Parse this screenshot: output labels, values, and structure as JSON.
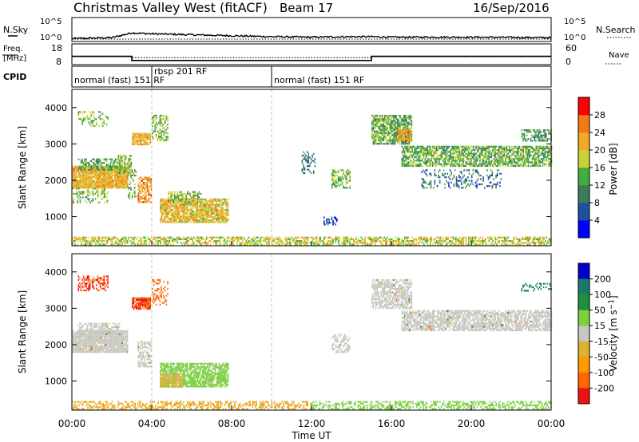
{
  "header": {
    "title": "Christmas Valley West (fitACF)",
    "beam": "Beam 17",
    "date": "16/Sep/2016"
  },
  "strips": {
    "nsky": {
      "label": "N.Sky",
      "ticks": [
        "10^5",
        "10^0"
      ]
    },
    "nsearch": {
      "label": "N.Search",
      "ticks": [
        "10^5",
        "10^0"
      ]
    },
    "freq": {
      "label_line1": "Freq.",
      "label_line2": "[MHz]",
      "ticks": [
        "18",
        "8"
      ]
    },
    "nave": {
      "label": "Nave",
      "ticks": [
        "60",
        "0"
      ]
    },
    "cpid": {
      "label": "CPID",
      "segments": [
        {
          "text": "normal (fast) 151 RF",
          "start_h": 0.0
        },
        {
          "text": "rbsp 201 RF",
          "start_h": 4.0
        },
        {
          "text": "normal (fast) 151 RF",
          "start_h": 10.0
        }
      ]
    }
  },
  "colors": {
    "power_scale": [
      "#0000ff",
      "#1f4fa0",
      "#3d7a5a",
      "#3fae3f",
      "#c8d238",
      "#f5a623",
      "#f07a16",
      "#ff0000"
    ],
    "velocity_scale": [
      "#ee1111",
      "#ff6600",
      "#ff9900",
      "#e0b030",
      "#c8c8c0",
      "#7bd13c",
      "#1d8f3d",
      "#1a7a6a",
      "#0000cc"
    ],
    "ground_scatter": "#c8c8c0"
  },
  "chart_data": [
    {
      "type": "line",
      "title": "N.Sky / N.Search",
      "x_unit": "hours UT",
      "x": [
        0,
        2,
        3,
        4,
        6,
        8,
        10,
        12,
        14,
        15,
        16,
        18,
        20,
        24
      ],
      "nsky_log10": [
        0.6,
        0.8,
        1.8,
        1.6,
        1.4,
        1.2,
        1.0,
        0.9,
        1.0,
        1.0,
        0.9,
        0.9,
        0.9,
        0.8
      ],
      "nsearch_log10": [
        0.5,
        0.5,
        0.5,
        0.5,
        0.5,
        0.5,
        0.5,
        0.5,
        0.5,
        0.5,
        0.5,
        0.5,
        0.5,
        0.5
      ]
    },
    {
      "type": "line",
      "title": "Freq / Nave",
      "x_unit": "hours UT",
      "freq_steps": [
        {
          "from_h": 0,
          "to_h": 3,
          "mhz": 12.0
        },
        {
          "from_h": 3,
          "to_h": 15,
          "mhz": 10.0
        },
        {
          "from_h": 15,
          "to_h": 24,
          "mhz": 12.0
        }
      ],
      "nave_steps": [
        {
          "from_h": 0,
          "to_h": 3,
          "value": 23
        },
        {
          "from_h": 3,
          "to_h": 15,
          "value": 20
        },
        {
          "from_h": 15,
          "to_h": 24,
          "value": 23
        }
      ]
    },
    {
      "type": "heatmap",
      "ylabel": "Slant Range [km]",
      "yticks": [
        1000,
        2000,
        3000,
        4000
      ],
      "ylim": [
        200,
        4500
      ],
      "colorbar_label": "Power [dB]",
      "colorbar_ticks": [
        4,
        8,
        12,
        16,
        20,
        24,
        28
      ],
      "clim": [
        0,
        30
      ],
      "regions": [
        {
          "t0": 0.0,
          "t1": 2.8,
          "r0": 1800,
          "r1": 2400,
          "value": 20,
          "density": 0.95
        },
        {
          "t0": 0.3,
          "t1": 2.4,
          "r0": 2300,
          "r1": 2600,
          "value": 12,
          "density": 0.6
        },
        {
          "t0": 2.3,
          "t1": 3.0,
          "r0": 2200,
          "r1": 2700,
          "value": 14,
          "density": 0.7
        },
        {
          "t0": 0.0,
          "t1": 1.8,
          "r0": 1400,
          "r1": 1800,
          "value": 14,
          "density": 0.4
        },
        {
          "t0": 0.3,
          "t1": 1.8,
          "r0": 3500,
          "r1": 3900,
          "value": 14,
          "density": 0.35
        },
        {
          "t0": 3.0,
          "t1": 3.9,
          "r0": 3000,
          "r1": 3300,
          "value": 20,
          "density": 0.85
        },
        {
          "t0": 3.3,
          "t1": 4.0,
          "r0": 1400,
          "r1": 2100,
          "value": 22,
          "density": 0.7
        },
        {
          "t0": 2.8,
          "t1": 3.2,
          "r0": 1500,
          "r1": 2300,
          "value": 14,
          "density": 0.4
        },
        {
          "t0": 4.4,
          "t1": 7.8,
          "r0": 850,
          "r1": 1500,
          "value": 19,
          "density": 0.85
        },
        {
          "t0": 4.8,
          "t1": 6.5,
          "r0": 1400,
          "r1": 1700,
          "value": 15,
          "density": 0.6
        },
        {
          "t0": 4.0,
          "t1": 4.8,
          "r0": 3100,
          "r1": 3800,
          "value": 14,
          "density": 0.5
        },
        {
          "t0": 11.5,
          "t1": 12.2,
          "r0": 2200,
          "r1": 2800,
          "value": 9,
          "density": 0.35
        },
        {
          "t0": 13.0,
          "t1": 13.9,
          "r0": 1800,
          "r1": 2300,
          "value": 14,
          "density": 0.6
        },
        {
          "t0": 12.6,
          "t1": 13.3,
          "r0": 800,
          "r1": 1000,
          "value": 6,
          "density": 0.4
        },
        {
          "t0": 15.0,
          "t1": 17.0,
          "r0": 3000,
          "r1": 3800,
          "value": 13,
          "density": 0.75
        },
        {
          "t0": 16.3,
          "t1": 17.0,
          "r0": 3100,
          "r1": 3400,
          "value": 22,
          "density": 0.8
        },
        {
          "t0": 16.5,
          "t1": 24.0,
          "r0": 2400,
          "r1": 2950,
          "value": 13,
          "density": 0.75
        },
        {
          "t0": 17.5,
          "t1": 21.5,
          "r0": 1800,
          "r1": 2300,
          "value": 8,
          "density": 0.25
        },
        {
          "t0": 22.5,
          "t1": 24.0,
          "r0": 3100,
          "r1": 3400,
          "value": 11,
          "density": 0.6
        },
        {
          "t0": 0.0,
          "t1": 24.0,
          "r0": 250,
          "r1": 450,
          "value": 17,
          "density": 0.6
        }
      ]
    },
    {
      "type": "heatmap",
      "ylabel": "Slant Range [km]",
      "yticks": [
        1000,
        2000,
        3000,
        4000
      ],
      "ylim": [
        200,
        4500
      ],
      "colorbar_label": "Velocity [m s^-1]",
      "colorbar_ticks": [
        200,
        100,
        50,
        15,
        -15,
        -50,
        -100,
        -200
      ],
      "regions": [
        {
          "t0": 0.0,
          "t1": 2.8,
          "r0": 1800,
          "r1": 2400,
          "value": 0,
          "ground": true,
          "density": 0.95
        },
        {
          "t0": 0.3,
          "t1": 2.4,
          "r0": 2300,
          "r1": 2600,
          "value": 0,
          "ground": true,
          "density": 0.6
        },
        {
          "t0": 0.3,
          "t1": 1.8,
          "r0": 3500,
          "r1": 3900,
          "value": -200,
          "density": 0.45
        },
        {
          "t0": 3.0,
          "t1": 3.9,
          "r0": 3000,
          "r1": 3300,
          "value": -200,
          "density": 0.85
        },
        {
          "t0": 3.3,
          "t1": 4.0,
          "r0": 1400,
          "r1": 2100,
          "value": 0,
          "ground": true,
          "density": 0.6
        },
        {
          "t0": 4.4,
          "t1": 7.8,
          "r0": 850,
          "r1": 1500,
          "value": 30,
          "density": 0.8
        },
        {
          "t0": 4.4,
          "t1": 5.5,
          "r0": 850,
          "r1": 1200,
          "value": -30,
          "density": 0.7
        },
        {
          "t0": 4.0,
          "t1": 4.8,
          "r0": 3100,
          "r1": 3800,
          "value": -150,
          "density": 0.4
        },
        {
          "t0": 13.0,
          "t1": 13.9,
          "r0": 1800,
          "r1": 2300,
          "value": 0,
          "ground": true,
          "density": 0.5
        },
        {
          "t0": 15.0,
          "t1": 17.0,
          "r0": 3000,
          "r1": 3800,
          "value": 0,
          "ground": true,
          "density": 0.7
        },
        {
          "t0": 16.5,
          "t1": 24.0,
          "r0": 2400,
          "r1": 2950,
          "value": 0,
          "ground": true,
          "density": 0.75
        },
        {
          "t0": 22.5,
          "t1": 24.0,
          "r0": 3500,
          "r1": 3700,
          "value": 120,
          "density": 0.3
        },
        {
          "t0": 0.0,
          "t1": 12.0,
          "r0": 250,
          "r1": 450,
          "value": -40,
          "density": 0.5
        },
        {
          "t0": 12.0,
          "t1": 24.0,
          "r0": 250,
          "r1": 450,
          "value": 30,
          "density": 0.5
        }
      ]
    }
  ],
  "xaxis": {
    "label": "Time UT",
    "ticks": [
      "00:00",
      "04:00",
      "08:00",
      "12:00",
      "16:00",
      "20:00",
      "00:00"
    ]
  }
}
